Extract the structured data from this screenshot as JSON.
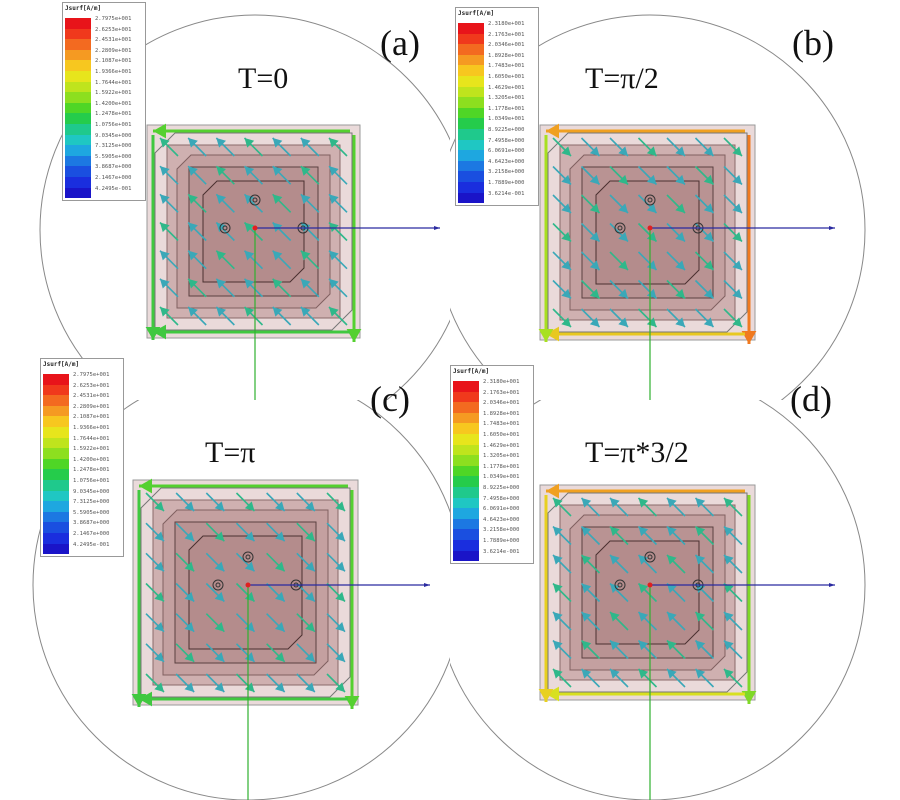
{
  "legend_colors": [
    "#e8141a",
    "#f0391c",
    "#f36a20",
    "#f59a22",
    "#f7c71f",
    "#e7e51c",
    "#bfe41d",
    "#8ddf1f",
    "#4fd626",
    "#25cc4b",
    "#1fc98c",
    "#1fc7c3",
    "#1ea7e0",
    "#1c78e2",
    "#1a4fe0",
    "#1a2ede",
    "#1a14c8"
  ],
  "panels": [
    {
      "id": "a",
      "label": "(a)",
      "time": "T=0",
      "legend_title": "Jsurf[A/m]",
      "legend_values": [
        "2.7975e+001",
        "2.6253e+001",
        "2.4531e+001",
        "2.2809e+001",
        "2.1087e+001",
        "1.9366e+001",
        "1.7644e+001",
        "1.5922e+001",
        "1.4200e+001",
        "1.2478e+001",
        "1.0756e+001",
        "9.0345e+000",
        "7.3125e+000",
        "5.5905e+000",
        "3.8687e+000",
        "2.1467e+000",
        "4.2495e-001"
      ]
    },
    {
      "id": "b",
      "label": "(b)",
      "time": "T=π/2",
      "legend_title": "Jsurf[A/m]",
      "legend_values": [
        "2.3180e+001",
        "2.1763e+001",
        "2.0346e+001",
        "1.8928e+001",
        "1.7483e+001",
        "1.6050e+001",
        "1.4629e+001",
        "1.3205e+001",
        "1.1778e+001",
        "1.0349e+001",
        "8.9225e+000",
        "7.4958e+000",
        "6.0691e+000",
        "4.6423e+000",
        "3.2158e+000",
        "1.7889e+000",
        "3.6214e-001"
      ]
    },
    {
      "id": "c",
      "label": "(c)",
      "time": "T=π",
      "legend_title": "Jsurf[A/m]",
      "legend_values": [
        "2.7975e+001",
        "2.6253e+001",
        "2.4531e+001",
        "2.2809e+001",
        "2.1087e+001",
        "1.9366e+001",
        "1.7644e+001",
        "1.5922e+001",
        "1.4200e+001",
        "1.2478e+001",
        "1.0756e+001",
        "9.0345e+000",
        "7.3125e+000",
        "5.5905e+000",
        "3.8687e+000",
        "2.1467e+000",
        "4.2495e-001"
      ]
    },
    {
      "id": "d",
      "label": "(d)",
      "time": "T=π*3/2",
      "legend_title": "Jsurf[A/m]",
      "legend_values": [
        "2.3180e+001",
        "2.1763e+001",
        "2.0346e+001",
        "1.8928e+001",
        "1.7483e+001",
        "1.6050e+001",
        "1.4629e+001",
        "1.3205e+001",
        "1.1778e+001",
        "1.0349e+001",
        "8.9225e+000",
        "7.4958e+000",
        "6.0691e+000",
        "4.6423e+000",
        "3.2158e+000",
        "1.7889e+000",
        "3.6214e-001"
      ]
    }
  ]
}
